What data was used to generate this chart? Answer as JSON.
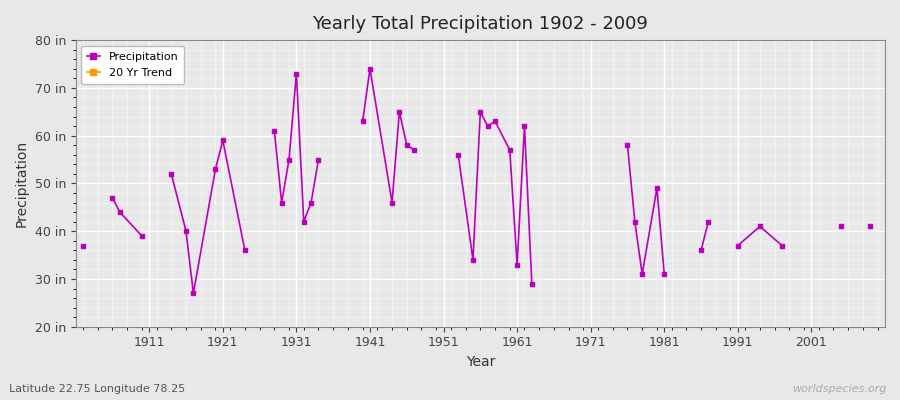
{
  "title": "Yearly Total Precipitation 1902 - 2009",
  "xlabel": "Year",
  "ylabel": "Precipitation",
  "background_color": "#e8e8e8",
  "plot_bg_color": "#e8e8e8",
  "line_color": "#bb00bb",
  "trend_color": "#ff9900",
  "ylim": [
    20,
    80
  ],
  "ytick_labels": [
    "20 in",
    "30 in",
    "40 in",
    "50 in",
    "60 in",
    "70 in",
    "80 in"
  ],
  "ytick_values": [
    20,
    30,
    40,
    50,
    60,
    70,
    80
  ],
  "xtick_values": [
    1911,
    1921,
    1931,
    1941,
    1951,
    1961,
    1971,
    1981,
    1991,
    2001
  ],
  "watermark": "worldspecies.org",
  "lat_lon_label": "Latitude 22.75 Longitude 78.25",
  "years": [
    1902,
    1906,
    1907,
    1910,
    1914,
    1916,
    1917,
    1920,
    1921,
    1924,
    1928,
    1929,
    1930,
    1931,
    1932,
    1933,
    1934,
    1940,
    1941,
    1944,
    1945,
    1946,
    1947,
    1953,
    1955,
    1956,
    1957,
    1958,
    1960,
    1961,
    1962,
    1963,
    1976,
    1977,
    1978,
    1980,
    1981,
    1986,
    1987,
    1991,
    1994,
    1997,
    2005,
    2009
  ],
  "precip": [
    37,
    47,
    44,
    39,
    52,
    40,
    27,
    53,
    59,
    36,
    61,
    46,
    55,
    73,
    42,
    46,
    55,
    63,
    74,
    46,
    65,
    58,
    57,
    56,
    34,
    65,
    62,
    63,
    57,
    33,
    62,
    29,
    58,
    42,
    31,
    49,
    31,
    36,
    42,
    37,
    41,
    37,
    41,
    41
  ]
}
